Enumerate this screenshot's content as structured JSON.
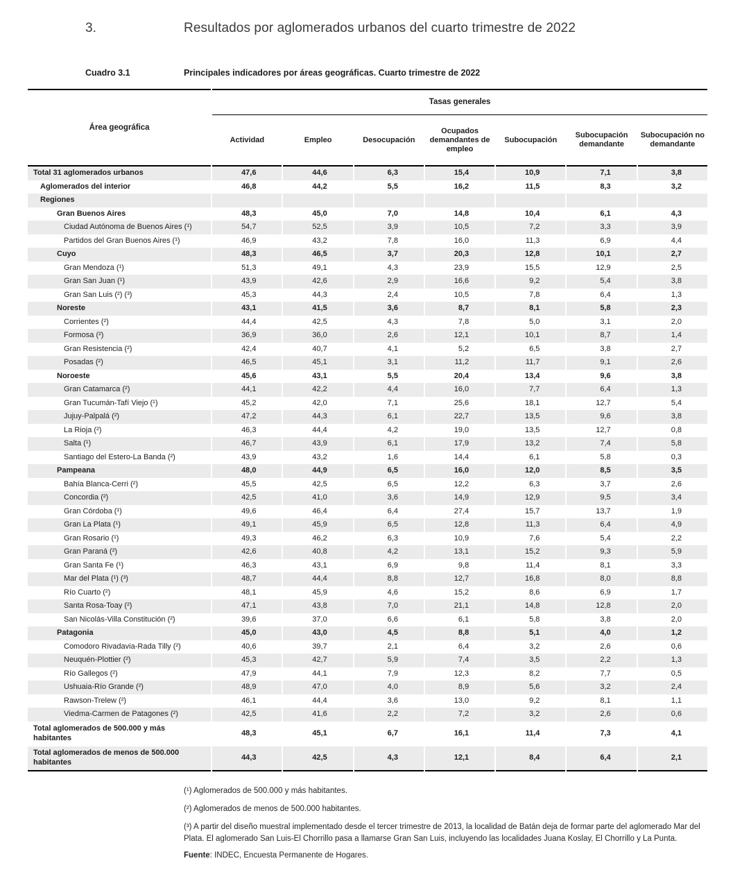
{
  "page": {
    "section_number": "3.",
    "section_title": "Resultados por aglomerados urbanos del cuarto trimestre de 2022",
    "table_label": "Cuadro 3.1",
    "table_title": "Principales indicadores por áreas geográficas. Cuarto trimestre de 2022"
  },
  "colors": {
    "stripe": "#ebebeb",
    "rule": "#000000",
    "text": "#1d1d1d"
  },
  "table": {
    "area_header": "Área geográfica",
    "group_header": "Tasas generales",
    "columns": [
      "Actividad",
      "Empleo",
      "Desocupación",
      "Ocupados demandantes de empleo",
      "Subocupación",
      "Subocupación demandante",
      "Subocupación no demandante"
    ],
    "rows": [
      {
        "label": "Total 31 aglomerados urbanos",
        "level": 0,
        "bold": true,
        "values": [
          "47,6",
          "44,6",
          "6,3",
          "15,4",
          "10,9",
          "7,1",
          "3,8"
        ]
      },
      {
        "label": "Aglomerados del interior",
        "level": 1,
        "bold": true,
        "values": [
          "46,8",
          "44,2",
          "5,5",
          "16,2",
          "11,5",
          "8,3",
          "3,2"
        ]
      },
      {
        "label": "Regiones",
        "level": 1,
        "bold": true,
        "values": [
          "",
          "",
          "",
          "",
          "",
          "",
          ""
        ]
      },
      {
        "label": "Gran Buenos Aires",
        "level": 2,
        "bold": true,
        "values": [
          "48,3",
          "45,0",
          "7,0",
          "14,8",
          "10,4",
          "6,1",
          "4,3"
        ]
      },
      {
        "label": "Ciudad Autónoma de Buenos Aires (¹)",
        "level": 3,
        "bold": false,
        "values": [
          "54,7",
          "52,5",
          "3,9",
          "10,5",
          "7,2",
          "3,3",
          "3,9"
        ]
      },
      {
        "label": "Partidos del Gran Buenos Aires (¹)",
        "level": 3,
        "bold": false,
        "values": [
          "46,9",
          "43,2",
          "7,8",
          "16,0",
          "11,3",
          "6,9",
          "4,4"
        ]
      },
      {
        "label": "Cuyo",
        "level": 2,
        "bold": true,
        "values": [
          "48,3",
          "46,5",
          "3,7",
          "20,3",
          "12,8",
          "10,1",
          "2,7"
        ]
      },
      {
        "label": "Gran Mendoza (¹)",
        "level": 3,
        "bold": false,
        "values": [
          "51,3",
          "49,1",
          "4,3",
          "23,9",
          "15,5",
          "12,9",
          "2,5"
        ]
      },
      {
        "label": "Gran San Juan (¹)",
        "level": 3,
        "bold": false,
        "values": [
          "43,9",
          "42,6",
          "2,9",
          "16,6",
          "9,2",
          "5,4",
          "3,8"
        ]
      },
      {
        "label": "Gran San Luis (²) (³)",
        "level": 3,
        "bold": false,
        "values": [
          "45,3",
          "44,3",
          "2,4",
          "10,5",
          "7,8",
          "6,4",
          "1,3"
        ]
      },
      {
        "label": "Noreste",
        "level": 2,
        "bold": true,
        "values": [
          "43,1",
          "41,5",
          "3,6",
          "8,7",
          "8,1",
          "5,8",
          "2,3"
        ]
      },
      {
        "label": "Corrientes (²)",
        "level": 3,
        "bold": false,
        "values": [
          "44,4",
          "42,5",
          "4,3",
          "7,8",
          "5,0",
          "3,1",
          "2,0"
        ]
      },
      {
        "label": "Formosa (²)",
        "level": 3,
        "bold": false,
        "values": [
          "36,9",
          "36,0",
          "2,6",
          "12,1",
          "10,1",
          "8,7",
          "1,4"
        ]
      },
      {
        "label": "Gran Resistencia (²)",
        "level": 3,
        "bold": false,
        "values": [
          "42,4",
          "40,7",
          "4,1",
          "5,2",
          "6,5",
          "3,8",
          "2,7"
        ]
      },
      {
        "label": "Posadas (²)",
        "level": 3,
        "bold": false,
        "values": [
          "46,5",
          "45,1",
          "3,1",
          "11,2",
          "11,7",
          "9,1",
          "2,6"
        ]
      },
      {
        "label": "Noroeste",
        "level": 2,
        "bold": true,
        "values": [
          "45,6",
          "43,1",
          "5,5",
          "20,4",
          "13,4",
          "9,6",
          "3,8"
        ]
      },
      {
        "label": "Gran Catamarca (²)",
        "level": 3,
        "bold": false,
        "values": [
          "44,1",
          "42,2",
          "4,4",
          "16,0",
          "7,7",
          "6,4",
          "1,3"
        ]
      },
      {
        "label": "Gran Tucumán-Tafí Viejo (¹)",
        "level": 3,
        "bold": false,
        "values": [
          "45,2",
          "42,0",
          "7,1",
          "25,6",
          "18,1",
          "12,7",
          "5,4"
        ]
      },
      {
        "label": "Jujuy-Palpalá (²)",
        "level": 3,
        "bold": false,
        "values": [
          "47,2",
          "44,3",
          "6,1",
          "22,7",
          "13,5",
          "9,6",
          "3,8"
        ]
      },
      {
        "label": "La Rioja (²)",
        "level": 3,
        "bold": false,
        "values": [
          "46,3",
          "44,4",
          "4,2",
          "19,0",
          "13,5",
          "12,7",
          "0,8"
        ]
      },
      {
        "label": "Salta (¹)",
        "level": 3,
        "bold": false,
        "values": [
          "46,7",
          "43,9",
          "6,1",
          "17,9",
          "13,2",
          "7,4",
          "5,8"
        ]
      },
      {
        "label": "Santiago del Estero-La Banda (²)",
        "level": 3,
        "bold": false,
        "values": [
          "43,9",
          "43,2",
          "1,6",
          "14,4",
          "6,1",
          "5,8",
          "0,3"
        ]
      },
      {
        "label": "Pampeana",
        "level": 2,
        "bold": true,
        "values": [
          "48,0",
          "44,9",
          "6,5",
          "16,0",
          "12,0",
          "8,5",
          "3,5"
        ]
      },
      {
        "label": "Bahía Blanca-Cerri (²)",
        "level": 3,
        "bold": false,
        "values": [
          "45,5",
          "42,5",
          "6,5",
          "12,2",
          "6,3",
          "3,7",
          "2,6"
        ]
      },
      {
        "label": "Concordia (²)",
        "level": 3,
        "bold": false,
        "values": [
          "42,5",
          "41,0",
          "3,6",
          "14,9",
          "12,9",
          "9,5",
          "3,4"
        ]
      },
      {
        "label": "Gran Córdoba (¹)",
        "level": 3,
        "bold": false,
        "values": [
          "49,6",
          "46,4",
          "6,4",
          "27,4",
          "15,7",
          "13,7",
          "1,9"
        ]
      },
      {
        "label": "Gran La Plata (¹)",
        "level": 3,
        "bold": false,
        "values": [
          "49,1",
          "45,9",
          "6,5",
          "12,8",
          "11,3",
          "6,4",
          "4,9"
        ]
      },
      {
        "label": "Gran Rosario (¹)",
        "level": 3,
        "bold": false,
        "values": [
          "49,3",
          "46,2",
          "6,3",
          "10,9",
          "7,6",
          "5,4",
          "2,2"
        ]
      },
      {
        "label": "Gran Paraná (²)",
        "level": 3,
        "bold": false,
        "values": [
          "42,6",
          "40,8",
          "4,2",
          "13,1",
          "15,2",
          "9,3",
          "5,9"
        ]
      },
      {
        "label": "Gran Santa Fe (¹)",
        "level": 3,
        "bold": false,
        "values": [
          "46,3",
          "43,1",
          "6,9",
          "9,8",
          "11,4",
          "8,1",
          "3,3"
        ]
      },
      {
        "label": "Mar del Plata (¹) (³)",
        "level": 3,
        "bold": false,
        "values": [
          "48,7",
          "44,4",
          "8,8",
          "12,7",
          "16,8",
          "8,0",
          "8,8"
        ]
      },
      {
        "label": "Río Cuarto (²)",
        "level": 3,
        "bold": false,
        "values": [
          "48,1",
          "45,9",
          "4,6",
          "15,2",
          "8,6",
          "6,9",
          "1,7"
        ]
      },
      {
        "label": "Santa Rosa-Toay (²)",
        "level": 3,
        "bold": false,
        "values": [
          "47,1",
          "43,8",
          "7,0",
          "21,1",
          "14,8",
          "12,8",
          "2,0"
        ]
      },
      {
        "label": "San Nicolás-Villa Constitución (²)",
        "level": 3,
        "bold": false,
        "values": [
          "39,6",
          "37,0",
          "6,6",
          "6,1",
          "5,8",
          "3,8",
          "2,0"
        ]
      },
      {
        "label": "Patagonia",
        "level": 2,
        "bold": true,
        "values": [
          "45,0",
          "43,0",
          "4,5",
          "8,8",
          "5,1",
          "4,0",
          "1,2"
        ]
      },
      {
        "label": "Comodoro Rivadavia-Rada Tilly (²)",
        "level": 3,
        "bold": false,
        "values": [
          "40,6",
          "39,7",
          "2,1",
          "6,4",
          "3,2",
          "2,6",
          "0,6"
        ]
      },
      {
        "label": "Neuquén-Plottier (²)",
        "level": 3,
        "bold": false,
        "values": [
          "45,3",
          "42,7",
          "5,9",
          "7,4",
          "3,5",
          "2,2",
          "1,3"
        ]
      },
      {
        "label": "Río Gallegos (²)",
        "level": 3,
        "bold": false,
        "values": [
          "47,9",
          "44,1",
          "7,9",
          "12,3",
          "8,2",
          "7,7",
          "0,5"
        ]
      },
      {
        "label": "Ushuaia-Río Grande (²)",
        "level": 3,
        "bold": false,
        "values": [
          "48,9",
          "47,0",
          "4,0",
          "8,9",
          "5,6",
          "3,2",
          "2,4"
        ]
      },
      {
        "label": "Rawson-Trelew (²)",
        "level": 3,
        "bold": false,
        "values": [
          "46,1",
          "44,4",
          "3,6",
          "13,0",
          "9,2",
          "8,1",
          "1,1"
        ]
      },
      {
        "label": "Viedma-Carmen de Patagones (²)",
        "level": 3,
        "bold": false,
        "values": [
          "42,5",
          "41,6",
          "2,2",
          "7,2",
          "3,2",
          "2,6",
          "0,6"
        ]
      },
      {
        "label": "Total aglomerados de 500.000 y más habitantes",
        "level": 0,
        "bold": true,
        "twolines": true,
        "values": [
          "48,3",
          "45,1",
          "6,7",
          "16,1",
          "11,4",
          "7,3",
          "4,1"
        ]
      },
      {
        "label": "Total aglomerados de menos de 500.000 habitantes",
        "level": 0,
        "bold": true,
        "twolines": true,
        "values": [
          "44,3",
          "42,5",
          "4,3",
          "12,1",
          "8,4",
          "6,4",
          "2,1"
        ]
      }
    ]
  },
  "footnotes": [
    "(¹) Aglomerados de 500.000 y más habitantes.",
    "(²) Aglomerados de menos de 500.000 habitantes.",
    "(³) A partir del diseño muestral implementado desde el tercer trimestre de 2013, la localidad de Batán deja de formar parte del aglomerado Mar del Plata. El aglomerado San Luis-El Chorrillo pasa a llamarse Gran San Luis, incluyendo las localidades Juana Koslay, El Chorrillo y La Punta."
  ],
  "source": {
    "label": "Fuente",
    "text": ": INDEC, Encuesta Permanente de Hogares."
  }
}
